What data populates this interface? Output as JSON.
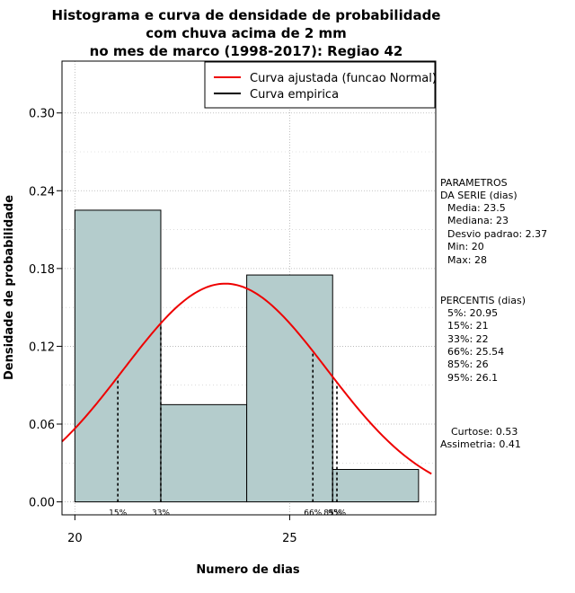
{
  "chart_data": {
    "type": "bar",
    "title_lines": [
      "Histograma e curva de densidade de probabilidade",
      "com chuva acima de 2 mm",
      "no mes de marco (1998-2017): Regiao 42"
    ],
    "xlabel": "Numero de dias",
    "ylabel": "Densidade de probabilidade",
    "xlim": [
      19.7,
      28.4
    ],
    "ylim": [
      -0.01,
      0.34
    ],
    "x_ticks": [
      20,
      25
    ],
    "y_ticks": [
      0.0,
      0.06,
      0.12,
      0.18,
      0.24,
      0.3
    ],
    "y_tick_labels": [
      "0.00",
      "0.06",
      "0.12",
      "0.18",
      "0.24",
      "0.30"
    ],
    "x_grid": [
      20,
      25
    ],
    "y_grid": [
      0.0,
      0.06,
      0.12,
      0.18,
      0.24,
      0.3
    ],
    "bins": [
      {
        "x0": 20,
        "x1": 22,
        "density": 0.225
      },
      {
        "x0": 22,
        "x1": 24,
        "density": 0.075
      },
      {
        "x0": 24,
        "x1": 26,
        "density": 0.175
      },
      {
        "x0": 26,
        "x1": 28,
        "density": 0.025
      }
    ],
    "bar_color": "#b4cccc",
    "normal_curve": {
      "mean": 23.5,
      "sd": 2.37,
      "color": "#ee0000",
      "x_range": [
        19.7,
        28.3
      ]
    },
    "percentile_lines": [
      {
        "x": 21,
        "label": "15%"
      },
      {
        "x": 22,
        "label": "33%"
      },
      {
        "x": 25.54,
        "label": "66%"
      },
      {
        "x": 26,
        "label": "85%"
      },
      {
        "x": 26.1,
        "label": "95%"
      }
    ],
    "legend": {
      "position": "top-right",
      "entries": [
        {
          "label": "Curva ajustada (funcao Normal)",
          "color": "#ee0000"
        },
        {
          "label": "Curva empirica",
          "color": "#000000"
        }
      ]
    }
  },
  "stats_panel": {
    "parametros_title_1": "PARAMETROS",
    "parametros_title_2": "DA SERIE (dias)",
    "media": "Media: 23.5",
    "mediana": "Mediana: 23",
    "desvio": "Desvio padrao: 2.37",
    "min": "Min: 20",
    "max": "Max: 28",
    "percentis_title": "PERCENTIS (dias)",
    "p5": "5%: 20.95",
    "p15": "15%: 21",
    "p33": "33%: 22",
    "p66": "66%: 25.54",
    "p85": "85%: 26",
    "p95": "95%: 26.1",
    "curtose": "Curtose: 0.53",
    "assimetria": "Assimetria: 0.41"
  }
}
